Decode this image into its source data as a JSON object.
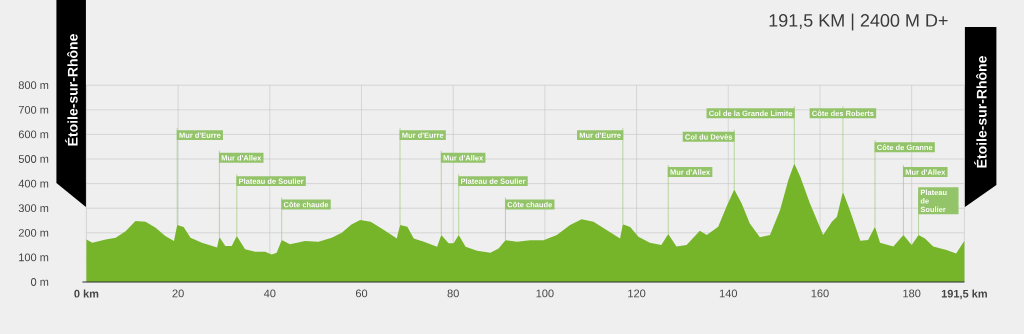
{
  "chart_data": {
    "type": "area",
    "title": "191,5 KM | 2400 M D+",
    "color": "#76b52a",
    "x": [
      0,
      1.3,
      4.2,
      6.4,
      8.6,
      10.7,
      12.9,
      15.1,
      17.2,
      19.1,
      19.8,
      21.2,
      22.7,
      25.2,
      28.5,
      29.0,
      30.3,
      31.7,
      32.8,
      34.6,
      36.8,
      39.0,
      40.4,
      41.5,
      42.6,
      44.4,
      47.7,
      50.6,
      53.5,
      55.7,
      57.8,
      59.7,
      62.0,
      64.9,
      67.7,
      68.4,
      70.0,
      71.4,
      73.6,
      76.5,
      77.4,
      79.0,
      80.1,
      81.2,
      82.7,
      85.2,
      88.1,
      89.9,
      91.4,
      93.9,
      96.8,
      99.7,
      102.6,
      105.5,
      108.0,
      110.6,
      113.5,
      116.4,
      117.0,
      118.6,
      120.4,
      122.9,
      125.4,
      126.9,
      128.7,
      130.9,
      133.8,
      135.3,
      137.8,
      139.6,
      141.3,
      142.9,
      144.7,
      146.9,
      149.1,
      151.3,
      153.1,
      154.4,
      155.7,
      157.8,
      160.7,
      162.6,
      163.7,
      165.0,
      166.5,
      168.8,
      170.5,
      172.0,
      173.1,
      176.0,
      178.2,
      180.0,
      181.5,
      182.9,
      184.7,
      187.6,
      189.7,
      191.5
    ],
    "values": [
      173,
      160,
      173,
      180,
      207,
      248,
      245,
      221,
      187,
      167,
      232,
      224,
      180,
      160,
      140,
      183,
      146,
      146,
      187,
      133,
      123,
      123,
      112,
      119,
      171,
      153,
      167,
      164,
      180,
      200,
      234,
      252,
      245,
      211,
      177,
      232,
      225,
      177,
      164,
      143,
      191,
      157,
      157,
      191,
      143,
      127,
      119,
      136,
      170,
      164,
      170,
      170,
      191,
      232,
      255,
      245,
      211,
      177,
      235,
      224,
      184,
      160,
      150,
      195,
      144,
      150,
      208,
      191,
      225,
      306,
      376,
      320,
      238,
      182,
      191,
      293,
      415,
      482,
      428,
      320,
      191,
      245,
      265,
      367,
      293,
      168,
      171,
      225,
      160,
      144,
      191,
      150,
      191,
      177,
      144,
      130,
      116,
      168
    ],
    "xlim": [
      0,
      191.5
    ],
    "ylim": [
      0,
      800
    ],
    "xticks": [
      {
        "value": 0,
        "label": "0 km"
      },
      20,
      40,
      60,
      80,
      100,
      120,
      140,
      160,
      180,
      {
        "value": 191.5,
        "label": "191,5 km"
      }
    ],
    "yticks": [
      {
        "value": 0,
        "label": "0 m"
      },
      {
        "value": 100,
        "label": "100 m"
      },
      {
        "value": 200,
        "label": "200 m"
      },
      {
        "value": 300,
        "label": "300 m"
      },
      {
        "value": 400,
        "label": "400 m"
      },
      {
        "value": 500,
        "label": "500 m"
      },
      {
        "value": 600,
        "label": "600 m"
      },
      {
        "value": 700,
        "label": "700 m"
      },
      {
        "value": 800,
        "label": "800 m"
      }
    ],
    "grid": true,
    "annotations": [
      "Étoile-sur-Rhône",
      {
        "text": "Mur d'Eurre",
        "x": 19.8,
        "y": 232
      },
      {
        "text": "Mur d'Allex",
        "x": 29.0,
        "y": 183
      },
      {
        "text": "Plateau de Soulier",
        "x": 32.8,
        "y": 187
      },
      {
        "text": "Côte chaude",
        "x": 42.6,
        "y": 171
      },
      {
        "text": "Mur d'Eurre",
        "x": 68.4,
        "y": 232
      },
      {
        "text": "Mur d'Allex",
        "x": 77.4,
        "y": 191
      },
      {
        "text": "Plateau de Soulier",
        "x": 81.2,
        "y": 191
      },
      {
        "text": "Côte chaude",
        "x": 91.4,
        "y": 170
      },
      {
        "text": "Mur d'Eurre",
        "x": 117.0,
        "y": 235
      },
      {
        "text": "Mur d'Allex",
        "x": 126.9,
        "y": 195
      },
      {
        "text": "Col du Devès",
        "x": 141.3,
        "y": 376
      },
      {
        "text": "Col de la Grande Limite",
        "x": 154.4,
        "y": 482
      },
      {
        "text": "Côte des Roberts",
        "x": 165.0,
        "y": 367
      },
      {
        "text": "Côte de Granne",
        "x": 172.0,
        "y": 225
      },
      {
        "text": "Mur d'Allex",
        "x": 178.2,
        "y": 191
      },
      {
        "text": "Plateau de Soulier",
        "x": 181.5,
        "y": 191
      },
      "Étoile-sur-Rhône"
    ]
  }
}
